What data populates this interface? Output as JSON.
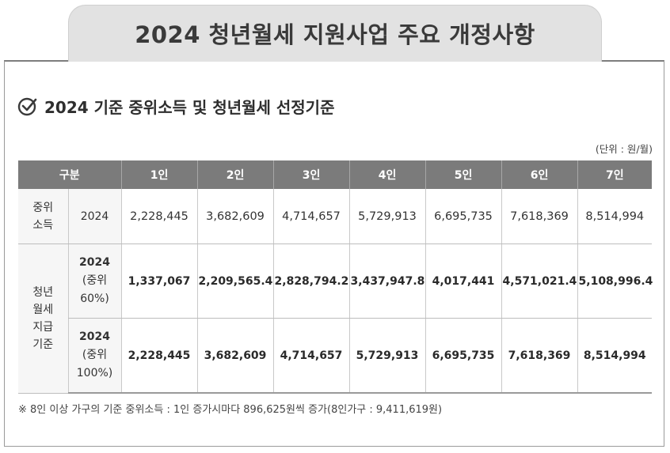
{
  "title": "2024 청년월세 지원사업 주요 개정사항",
  "section_title": "2024 기준 중위소득 및 청년월세 선정기준",
  "unit": "(단위 : 원/월)",
  "table": {
    "header_label": "구분",
    "columns": [
      "1인",
      "2인",
      "3인",
      "4인",
      "5인",
      "6인",
      "7인"
    ],
    "median_income": {
      "label_line1": "중위",
      "label_line2": "소득",
      "year": "2024",
      "values": [
        "2,228,445",
        "3,682,609",
        "4,714,657",
        "5,729,913",
        "6,695,735",
        "7,618,369",
        "8,514,994"
      ]
    },
    "youth_rent": {
      "label_line1": "청년",
      "label_line2": "월세",
      "label_line3": "지급",
      "label_line4": "기준",
      "rows": [
        {
          "year": "2024",
          "pct_line1": "(중위",
          "pct_line2": "60%)",
          "values": [
            "1,337,067",
            "2,209,565.4",
            "2,828,794.2",
            "3,437,947.8",
            "4,017,441",
            "4,571,021.4",
            "5,108,996.4"
          ]
        },
        {
          "year": "2024",
          "pct_line1": "(중위",
          "pct_line2": "100%)",
          "values": [
            "2,228,445",
            "3,682,609",
            "4,714,657",
            "5,729,913",
            "6,695,735",
            "7,618,369",
            "8,514,994"
          ]
        }
      ]
    }
  },
  "footnote": "※ 8인 이상 가구의 기준 중위소득 : 1인 증가시마다 896,625원씩 증가(8인가구 : 9,411,619원)"
}
